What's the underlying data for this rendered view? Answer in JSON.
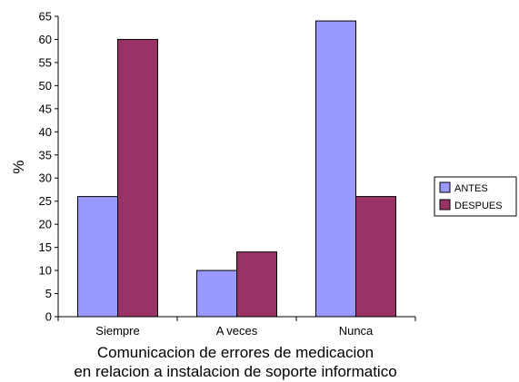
{
  "chart_data": {
    "type": "bar",
    "title": "",
    "xlabel": "Comunicacion de errores de medicacion\nen relacion a instalacion de soporte informatico",
    "ylabel": "%",
    "ylim": [
      0,
      65
    ],
    "yticks": [
      0,
      5,
      10,
      15,
      20,
      25,
      30,
      35,
      40,
      45,
      50,
      55,
      60,
      65
    ],
    "categories": [
      "Siempre",
      "A veces",
      "Nunca"
    ],
    "series": [
      {
        "name": "ANTES",
        "values": [
          26,
          10,
          64
        ],
        "color": "#9999ff"
      },
      {
        "name": "DESPUES",
        "values": [
          60,
          14,
          26
        ],
        "color": "#993366"
      }
    ],
    "grid": false,
    "legend_position": "right"
  }
}
